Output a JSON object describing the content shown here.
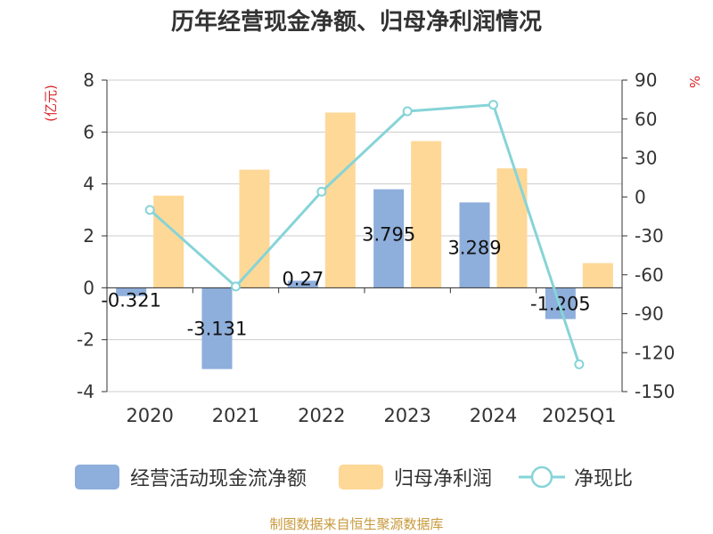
{
  "title": "历年经营现金净额、归母净利润情况",
  "source": "制图数据来自恒生聚源数据库",
  "chart_data": {
    "type": "bar",
    "title": "历年经营现金净额、归母净利润情况",
    "categories": [
      "2020",
      "2021",
      "2022",
      "2023",
      "2024",
      "2025Q1"
    ],
    "left_axis": {
      "unit_label": "(亿元)",
      "min": -4,
      "max": 8,
      "ticks": [
        -4,
        -2,
        0,
        2,
        4,
        6,
        8
      ]
    },
    "right_axis": {
      "unit_label": "%",
      "min": -150,
      "max": 90,
      "ticks": [
        -150,
        -120,
        -90,
        -60,
        -30,
        0,
        30,
        60,
        90
      ]
    },
    "grid": true,
    "legend_position": "bottom",
    "series": [
      {
        "name": "经营活动现金流净额",
        "type": "bar",
        "axis": "left",
        "color": "#8eaedb",
        "values": [
          -0.321,
          -3.131,
          0.27,
          3.795,
          3.289,
          -1.205
        ],
        "labels": [
          "-0.321",
          "-3.131",
          "0.27",
          "3.795",
          "3.289",
          "-1.205"
        ]
      },
      {
        "name": "归母净利润",
        "type": "bar",
        "axis": "left",
        "color": "#fed897",
        "values": [
          3.55,
          4.55,
          6.75,
          5.65,
          4.6,
          0.95
        ]
      },
      {
        "name": "净现比",
        "type": "line",
        "axis": "right",
        "color": "#86d4d8",
        "values": [
          -10,
          -69,
          4,
          66,
          71,
          -129
        ]
      }
    ]
  }
}
